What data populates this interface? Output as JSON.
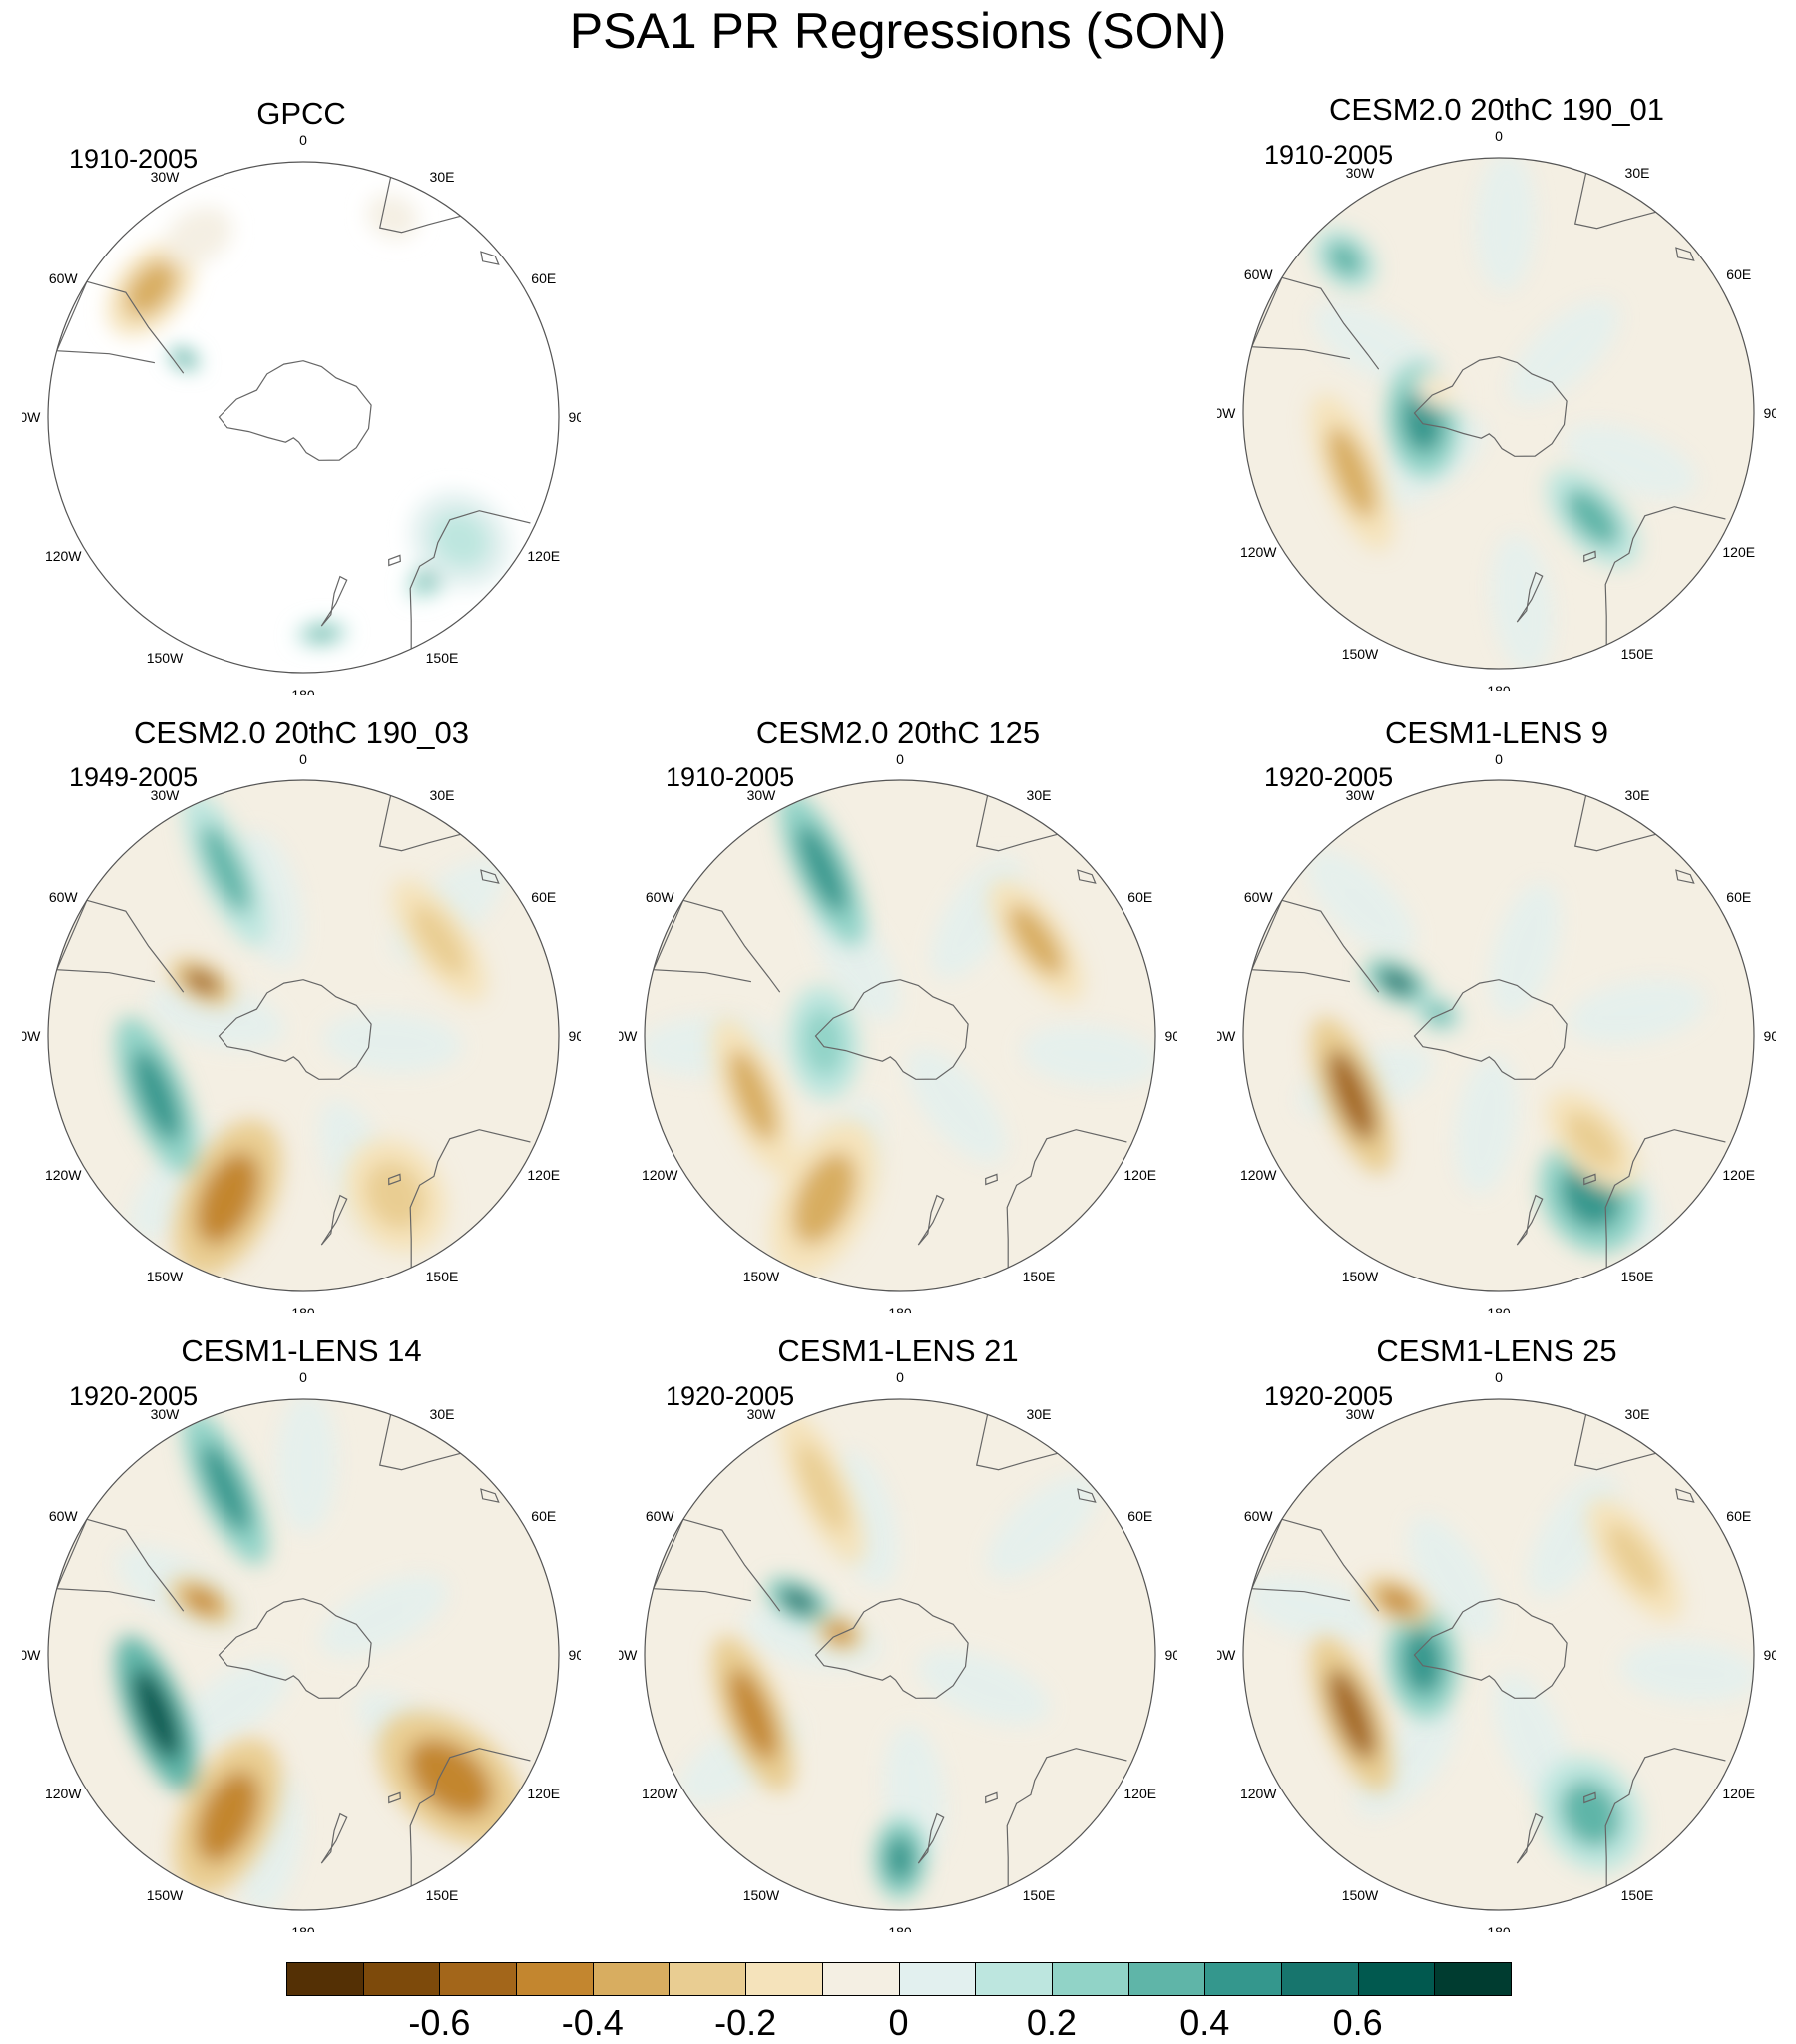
{
  "title": "PSA1 PR Regressions (SON)",
  "longitude_labels": [
    "0",
    "30E",
    "60E",
    "90E",
    "120E",
    "150E",
    "180",
    "150W",
    "120W",
    "90W",
    "60W",
    "30W"
  ],
  "panels": [
    {
      "name": "GPCC",
      "period": "1910-2005",
      "ocean_data": false,
      "anomalies": [
        {
          "region": "southern South America (west)",
          "value": -0.4
        },
        {
          "region": "southern South America (east)",
          "value": -0.1
        },
        {
          "region": "Tierra del Fuego",
          "value": 0.4
        },
        {
          "region": "southern Africa",
          "value": -0.05
        },
        {
          "region": "southwest Australia",
          "value": 0.3
        },
        {
          "region": "southeast Australia",
          "value": 0.15
        },
        {
          "region": "New Zealand",
          "value": 0.3
        }
      ]
    },
    {
      "name": "CESM2.0 20thC 190_01",
      "period": "1910-2005",
      "ocean_data": true,
      "anomalies": [
        {
          "region": "Bellingshausen Sea",
          "value": 0.4
        },
        {
          "region": "southeast Pacific",
          "value": -0.35
        },
        {
          "region": "south of Australia",
          "value": 0.3
        },
        {
          "region": "southern Atlantic",
          "value": 0.3
        },
        {
          "region": "Antarctic Peninsula",
          "value": -0.2
        }
      ]
    },
    {
      "name": "CESM2.0 20thC 190_03",
      "period": "1949-2005",
      "ocean_data": true,
      "anomalies": [
        {
          "region": "Drake Passage",
          "value": -0.6
        },
        {
          "region": "South Atlantic",
          "value": 0.35
        },
        {
          "region": "southwest Pacific",
          "value": -0.5
        },
        {
          "region": "Tasman Sea",
          "value": -0.3
        },
        {
          "region": "southern Indian Ocean",
          "value": -0.3
        },
        {
          "region": "southeast Pacific",
          "value": 0.4
        }
      ]
    },
    {
      "name": "CESM2.0 20thC 125",
      "period": "1910-2005",
      "ocean_data": true,
      "anomalies": [
        {
          "region": "South Atlantic",
          "value": 0.45
        },
        {
          "region": "southeast Pacific",
          "value": -0.4
        },
        {
          "region": "southwest Pacific",
          "value": -0.35
        },
        {
          "region": "southern Indian Ocean",
          "value": -0.35
        },
        {
          "region": "Bellingshausen Sea",
          "value": 0.25
        }
      ]
    },
    {
      "name": "CESM1-LENS 9",
      "period": "1920-2005",
      "ocean_data": true,
      "anomalies": [
        {
          "region": "southeast Pacific",
          "value": -0.6
        },
        {
          "region": "Tasman Sea",
          "value": 0.45
        },
        {
          "region": "Drake Passage",
          "value": 0.5
        },
        {
          "region": "south of Australia",
          "value": -0.3
        },
        {
          "region": "Antarctic Peninsula",
          "value": 0.3
        }
      ]
    },
    {
      "name": "CESM1-LENS 14",
      "period": "1920-2005",
      "ocean_data": true,
      "anomalies": [
        {
          "region": "southeast Pacific",
          "value": 0.65
        },
        {
          "region": "southwest Pacific",
          "value": -0.45
        },
        {
          "region": "Australia",
          "value": -0.45
        },
        {
          "region": "South Atlantic",
          "value": 0.45
        },
        {
          "region": "Drake Passage",
          "value": -0.5
        }
      ]
    },
    {
      "name": "CESM1-LENS 21",
      "period": "1920-2005",
      "ocean_data": true,
      "anomalies": [
        {
          "region": "southeast Pacific",
          "value": -0.45
        },
        {
          "region": "Drake Passage",
          "value": 0.55
        },
        {
          "region": "Antarctic Peninsula",
          "value": -0.45
        },
        {
          "region": "southwest Pacific (180)",
          "value": 0.45
        },
        {
          "region": "South Atlantic",
          "value": -0.3
        }
      ]
    },
    {
      "name": "CESM1-LENS 25",
      "period": "1920-2005",
      "ocean_data": true,
      "anomalies": [
        {
          "region": "southeast Pacific",
          "value": -0.6
        },
        {
          "region": "Bellingshausen Sea",
          "value": 0.4
        },
        {
          "region": "Tasman Sea",
          "value": 0.35
        },
        {
          "region": "Drake Passage",
          "value": -0.5
        },
        {
          "region": "southern Indian Ocean",
          "value": -0.25
        }
      ]
    }
  ],
  "colorbar": {
    "labels": [
      "-0.6",
      "-0.4",
      "-0.2",
      "0",
      "0.2",
      "0.4",
      "0.6"
    ],
    "colors": [
      "#543005",
      "#7d4a0b",
      "#a3661a",
      "#c3862f",
      "#d8ad60",
      "#e9cd92",
      "#f5e3bb",
      "#f4efe3",
      "#e2f0ef",
      "#bde6df",
      "#91d3c7",
      "#5fb5a8",
      "#34978d",
      "#17756d",
      "#01594f",
      "#003c30"
    ]
  }
}
